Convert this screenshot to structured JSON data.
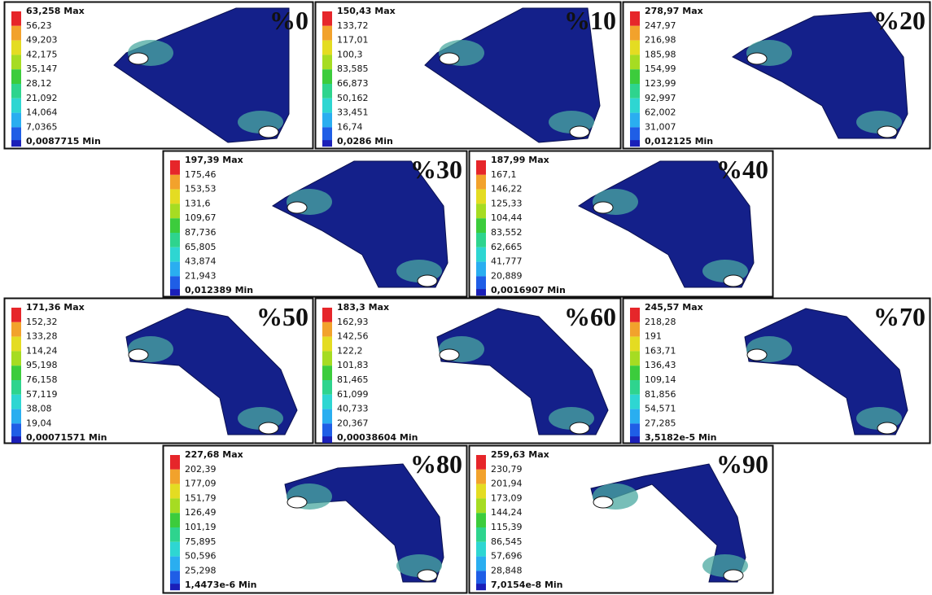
{
  "panels": [
    {
      "label": "%0",
      "legend": [
        "63,258 Max",
        "56,23",
        "49,203",
        "42,175",
        "35,147",
        "28,12",
        "21,092",
        "14,064",
        "7,0365",
        "0,0087715 Min"
      ]
    },
    {
      "label": "%10",
      "legend": [
        "150,43 Max",
        "133,72",
        "117,01",
        "100,3",
        "83,585",
        "66,873",
        "50,162",
        "33,451",
        "16,74",
        "0,0286 Min"
      ]
    },
    {
      "label": "%20",
      "legend": [
        "278,97 Max",
        "247,97",
        "216,98",
        "185,98",
        "154,99",
        "123,99",
        "92,997",
        "62,002",
        "31,007",
        "0,012125 Min"
      ]
    },
    {
      "label": "%30",
      "legend": [
        "197,39 Max",
        "175,46",
        "153,53",
        "131,6",
        "109,67",
        "87,736",
        "65,805",
        "43,874",
        "21,943",
        "0,012389 Min"
      ]
    },
    {
      "label": "%40",
      "legend": [
        "187,99 Max",
        "167,1",
        "146,22",
        "125,33",
        "104,44",
        "83,552",
        "62,665",
        "41,777",
        "20,889",
        "0,0016907 Min"
      ]
    },
    {
      "label": "%50",
      "legend": [
        "171,36 Max",
        "152,32",
        "133,28",
        "114,24",
        "95,198",
        "76,158",
        "57,119",
        "38,08",
        "19,04",
        "0,00071571 Min"
      ]
    },
    {
      "label": "%60",
      "legend": [
        "183,3 Max",
        "162,93",
        "142,56",
        "122,2",
        "101,83",
        "81,465",
        "61,099",
        "40,733",
        "20,367",
        "0,00038604 Min"
      ]
    },
    {
      "label": "%70",
      "legend": [
        "245,57 Max",
        "218,28",
        "191",
        "163,71",
        "136,43",
        "109,14",
        "81,856",
        "54,571",
        "27,285",
        "3,5182e-5 Min"
      ]
    },
    {
      "label": "%80",
      "legend": [
        "227,68 Max",
        "202,39",
        "177,09",
        "151,79",
        "126,49",
        "101,19",
        "75,895",
        "50,596",
        "25,298",
        "1,4473e-6 Min"
      ]
    },
    {
      "label": "%90",
      "legend": [
        "259,63 Max",
        "230,79",
        "201,94",
        "173,09",
        "144,24",
        "115,39",
        "86,545",
        "57,696",
        "28,848",
        "7,0154e-8 Min"
      ]
    }
  ]
}
